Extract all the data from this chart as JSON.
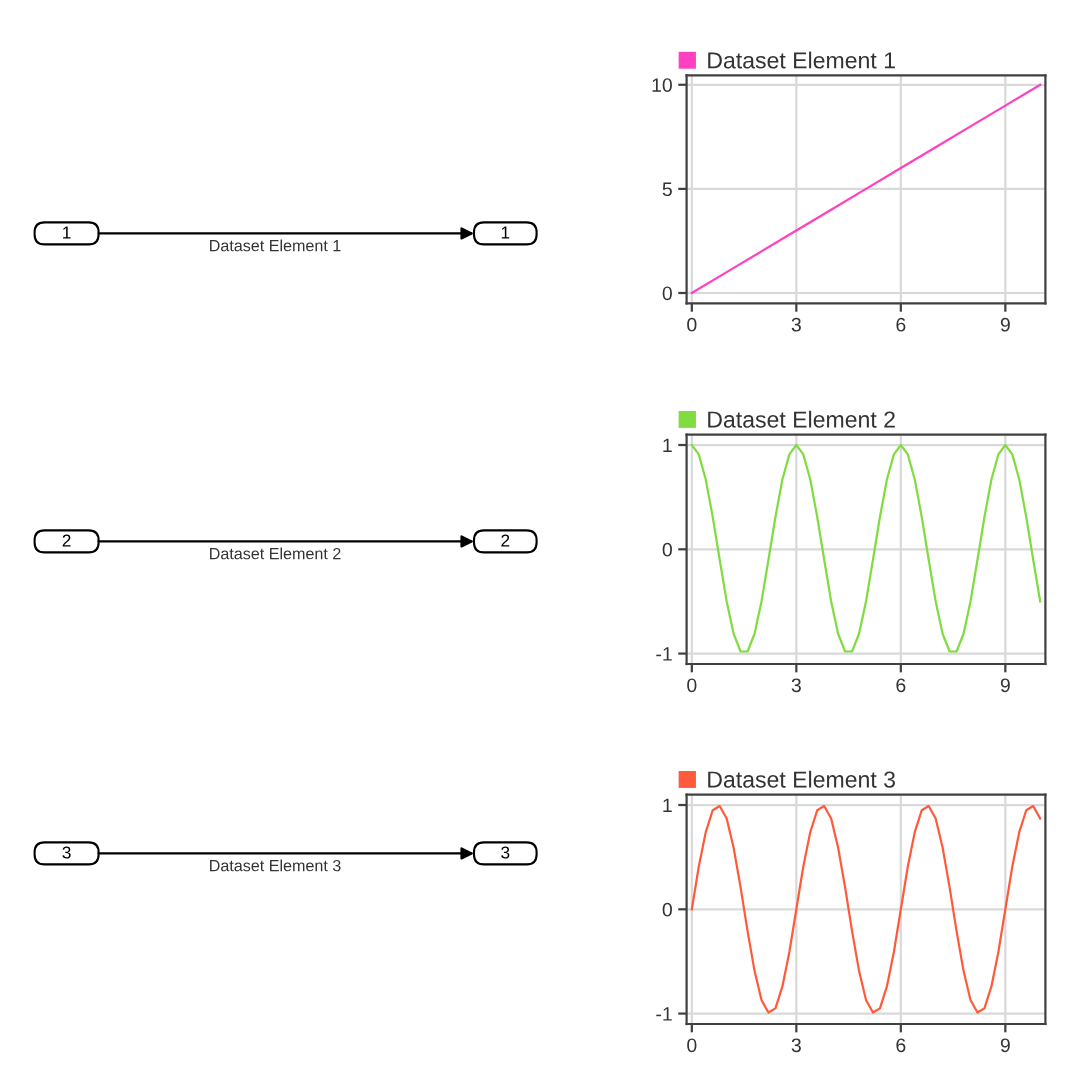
{
  "chart_data": [
    {
      "type": "other",
      "annotations": [
        "1",
        "Dataset Element 1",
        "1"
      ]
    },
    {
      "type": "line",
      "x": [
        0,
        1,
        2,
        3,
        4,
        5,
        6,
        7,
        8,
        9,
        10
      ],
      "series": [
        {
          "name": "Dataset Element 1",
          "color": "#ff40c0",
          "values": [
            0,
            1,
            2,
            3,
            4,
            5,
            6,
            7,
            8,
            9,
            10
          ]
        }
      ],
      "xlim": [
        -0.15,
        10.15
      ],
      "xticks": [
        0,
        3,
        6,
        9
      ],
      "ylim": [
        -0.5,
        10.45
      ],
      "yticks": [
        0,
        5,
        10
      ],
      "grid": true,
      "legend": "top left"
    },
    {
      "type": "other",
      "annotations": [
        "2",
        "Dataset Element 2",
        "2"
      ]
    },
    {
      "type": "line",
      "x": [
        0,
        0.2,
        0.4,
        0.6,
        0.8,
        1,
        1.2,
        1.4,
        1.6,
        1.8,
        2,
        2.2,
        2.4,
        2.6,
        2.8,
        3,
        3.2,
        3.4,
        3.6,
        3.8,
        4,
        4.2,
        4.4,
        4.6,
        4.8,
        5,
        5.2,
        5.4,
        5.6,
        5.8,
        6,
        6.2,
        6.4,
        6.6,
        6.8,
        7,
        7.2,
        7.4,
        7.6,
        7.8,
        8,
        8.2,
        8.4,
        8.6,
        8.8,
        9,
        9.2,
        9.4,
        9.6,
        9.8,
        10
      ],
      "series": [
        {
          "name": "Dataset Element 2",
          "color": "#80dc40",
          "values": [
            1,
            0.91,
            0.67,
            0.31,
            -0.1,
            -0.5,
            -0.81,
            -0.98,
            -0.98,
            -0.81,
            -0.5,
            -0.1,
            0.31,
            0.67,
            0.91,
            1,
            0.91,
            0.67,
            0.31,
            -0.1,
            -0.5,
            -0.81,
            -0.98,
            -0.98,
            -0.81,
            -0.5,
            -0.1,
            0.31,
            0.67,
            0.91,
            1,
            0.91,
            0.67,
            0.31,
            -0.1,
            -0.5,
            -0.81,
            -0.98,
            -0.98,
            -0.81,
            -0.5,
            -0.1,
            0.31,
            0.67,
            0.91,
            1,
            0.91,
            0.67,
            0.31,
            -0.1,
            -0.5
          ]
        }
      ],
      "xlim": [
        -0.15,
        10.15
      ],
      "xticks": [
        0,
        3,
        6,
        9
      ],
      "ylim": [
        -1.1,
        1.1
      ],
      "yticks": [
        -1,
        0,
        1
      ],
      "grid": true,
      "legend": "top left"
    },
    {
      "type": "other",
      "annotations": [
        "3",
        "Dataset Element 3",
        "3"
      ]
    },
    {
      "type": "line",
      "x": [
        0,
        0.2,
        0.4,
        0.6,
        0.8,
        1,
        1.2,
        1.4,
        1.6,
        1.8,
        2,
        2.2,
        2.4,
        2.6,
        2.8,
        3,
        3.2,
        3.4,
        3.6,
        3.8,
        4,
        4.2,
        4.4,
        4.6,
        4.8,
        5,
        5.2,
        5.4,
        5.6,
        5.8,
        6,
        6.2,
        6.4,
        6.6,
        6.8,
        7,
        7.2,
        7.4,
        7.6,
        7.8,
        8,
        8.2,
        8.4,
        8.6,
        8.8,
        9,
        9.2,
        9.4,
        9.6,
        9.8,
        10
      ],
      "series": [
        {
          "name": "Dataset Element 3",
          "color": "#ff5a3c",
          "values": [
            0,
            0.41,
            0.74,
            0.95,
            0.99,
            0.87,
            0.59,
            0.21,
            -0.21,
            -0.59,
            -0.87,
            -0.99,
            -0.95,
            -0.74,
            -0.41,
            0,
            0.41,
            0.74,
            0.95,
            0.99,
            0.87,
            0.59,
            0.21,
            -0.21,
            -0.59,
            -0.87,
            -0.99,
            -0.95,
            -0.74,
            -0.41,
            0,
            0.41,
            0.74,
            0.95,
            0.99,
            0.87,
            0.59,
            0.21,
            -0.21,
            -0.59,
            -0.87,
            -0.99,
            -0.95,
            -0.74,
            -0.41,
            0,
            0.41,
            0.74,
            0.95,
            0.99,
            0.87
          ]
        }
      ],
      "xlim": [
        -0.15,
        10.15
      ],
      "xticks": [
        0,
        3,
        6,
        9
      ],
      "ylim": [
        -1.1,
        1.1
      ],
      "yticks": [
        -1,
        0,
        1
      ],
      "grid": true,
      "legend": "top left"
    }
  ]
}
